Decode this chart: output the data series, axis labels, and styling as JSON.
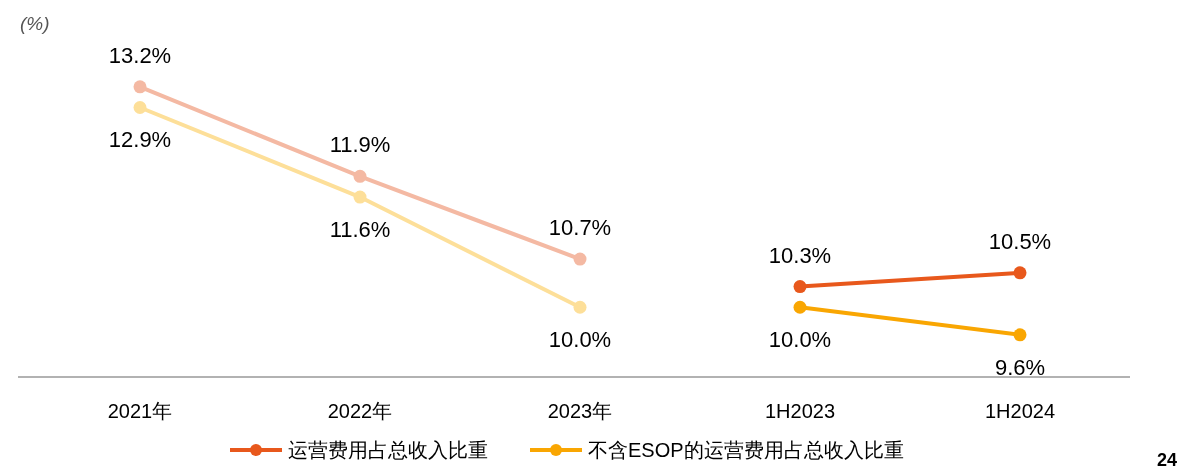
{
  "chart_data": {
    "type": "line",
    "ylabel": "(%)",
    "categories": [
      "2021年",
      "2022年",
      "2023年",
      "1H2023",
      "1H2024"
    ],
    "tick_labels": "x",
    "marker": "circle",
    "legend": "bottom",
    "series": [
      {
        "color": "#f4b9a3",
        "values": [
          13.2,
          11.9,
          10.7,
          null,
          null
        ],
        "value_labels": [
          "13.2%",
          "11.9%",
          "10.7%",
          null,
          null
        ]
      },
      {
        "color": "#fddf99",
        "values": [
          12.9,
          11.6,
          10.0,
          null,
          null
        ],
        "value_labels": [
          "12.9%",
          "11.6%",
          "10.0%",
          null,
          null
        ]
      },
      {
        "name": "运营费用占总收入比重",
        "color": "#e8581c",
        "values": [
          null,
          null,
          null,
          10.3,
          10.5
        ],
        "value_labels": [
          null,
          null,
          null,
          "10.3%",
          "10.5%"
        ]
      },
      {
        "name": "不含ESOP的运营费用占总收入比重",
        "color": "#f9a602",
        "values": [
          null,
          null,
          null,
          10.0,
          9.6
        ],
        "value_labels": [
          null,
          null,
          null,
          "10.0%",
          "9.6%"
        ]
      }
    ],
    "annotations": [
      "24"
    ]
  }
}
